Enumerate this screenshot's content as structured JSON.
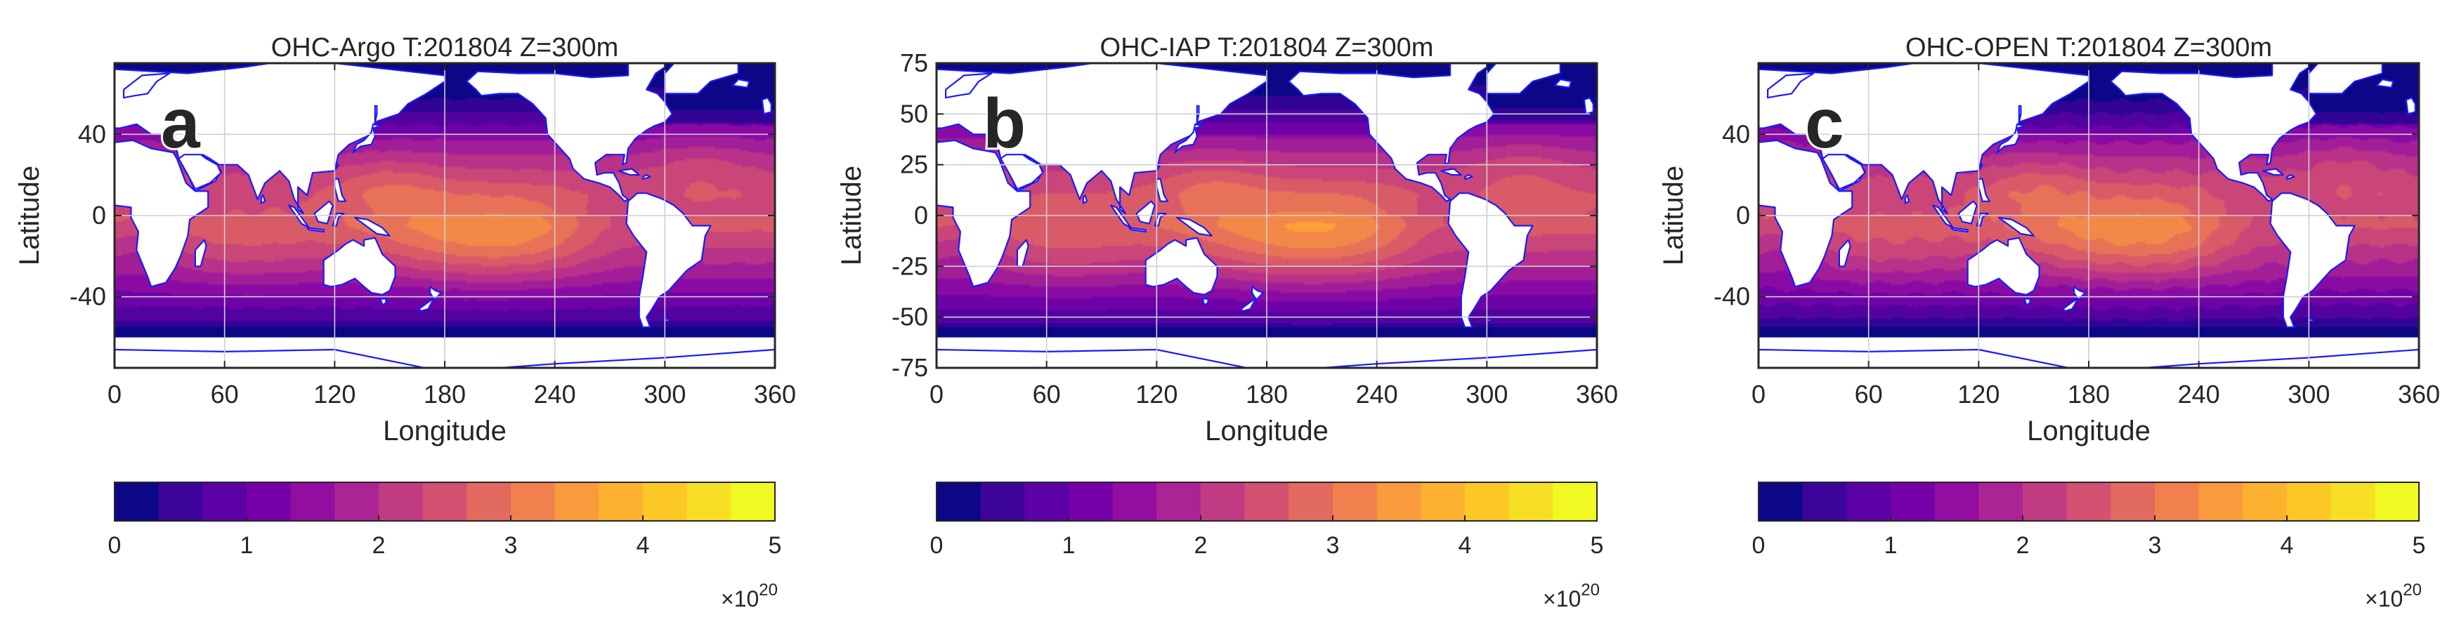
{
  "colors": {
    "land": "#ffffff",
    "coast": "#1a1aff",
    "grid": "#cfcfcf",
    "axis": "#262626",
    "colormap": [
      "#0c0786",
      "#40039c",
      "#6a00a7",
      "#8f0da3",
      "#b02a8f",
      "#ca4678",
      "#e16462",
      "#f2844b",
      "#fca635",
      "#fcce25",
      "#f0f921"
    ],
    "steps": [
      "#0c0786",
      "#3d049b",
      "#5b01a5",
      "#7701a8",
      "#930da1",
      "#ab2494",
      "#c13b82",
      "#d35171",
      "#e36a5f",
      "#f0804e",
      "#f99a3d",
      "#fcb22f",
      "#fcc826",
      "#f7e024",
      "#f0f921"
    ]
  },
  "panels": [
    {
      "letter": "a",
      "title": "OHC-Argo T:201804  Z=300m",
      "xlabel": "Longitude",
      "ylabel": "Latitude",
      "xticks": [
        "0",
        "60",
        "120",
        "180",
        "240",
        "300",
        "360"
      ],
      "yticks": [
        {
          "value": 40,
          "label": "40"
        },
        {
          "value": 0,
          "label": "0"
        },
        {
          "value": -40,
          "label": "-40"
        }
      ],
      "colorbar": {
        "ticks": [
          "0",
          "1",
          "2",
          "3",
          "4",
          "5"
        ],
        "exponent_base": "×10",
        "exponent": "20"
      }
    },
    {
      "letter": "b",
      "title": "OHC-IAP T:201804  Z=300m",
      "xlabel": "Longitude",
      "ylabel": "Latitude",
      "xticks": [
        "0",
        "60",
        "120",
        "180",
        "240",
        "300",
        "360"
      ],
      "yticks": [
        {
          "value": 75,
          "label": "75"
        },
        {
          "value": 50,
          "label": "50"
        },
        {
          "value": 25,
          "label": "25"
        },
        {
          "value": 0,
          "label": "0"
        },
        {
          "value": -25,
          "label": "-25"
        },
        {
          "value": -50,
          "label": "-50"
        },
        {
          "value": -75,
          "label": "-75"
        }
      ],
      "colorbar": {
        "ticks": [
          "0",
          "1",
          "2",
          "3",
          "4",
          "5"
        ],
        "exponent_base": "×10",
        "exponent": "20"
      }
    },
    {
      "letter": "c",
      "title": "OHC-OPEN T:201804  Z=300m",
      "xlabel": "Longitude",
      "ylabel": "Latitude",
      "xticks": [
        "0",
        "60",
        "120",
        "180",
        "240",
        "300",
        "360"
      ],
      "yticks": [
        {
          "value": 40,
          "label": "40"
        },
        {
          "value": 0,
          "label": "0"
        },
        {
          "value": -40,
          "label": "-40"
        }
      ],
      "colorbar": {
        "ticks": [
          "0",
          "1",
          "2",
          "3",
          "4",
          "5"
        ],
        "exponent_base": "×10",
        "exponent": "20"
      }
    }
  ],
  "chart_data": [
    {
      "type": "heatmap",
      "title": "OHC-Argo T:201804  Z=300m",
      "xlabel": "Longitude",
      "ylabel": "Latitude",
      "xlim": [
        0,
        360
      ],
      "ylim": [
        -75,
        75
      ],
      "data_lat_range": [
        -60,
        75
      ],
      "colorbar_range": [
        0,
        5
      ],
      "colorbar_units": "x10^20",
      "colorbar_levels": 15,
      "approx_field": [
        {
          "region": "tropical/subtropical Pacific (160-250E, 30S-10N)",
          "value": 3.2
        },
        {
          "region": "Indian Ocean (50-100E, 30S-0)",
          "value": 2.7
        },
        {
          "region": "subtropical Atlantic (300-345E, 10-35N)",
          "value": 2.6
        },
        {
          "region": "North Pacific (40-55N)",
          "value": 1.0
        },
        {
          "region": "Southern Ocean (50-60S)",
          "value": 0.3
        }
      ]
    },
    {
      "type": "heatmap",
      "title": "OHC-IAP T:201804  Z=300m",
      "xlabel": "Longitude",
      "ylabel": "Latitude",
      "xlim": [
        0,
        360
      ],
      "ylim": [
        -75,
        75
      ],
      "data_lat_range": [
        -60,
        75
      ],
      "colorbar_range": [
        0,
        5
      ],
      "colorbar_units": "x10^20",
      "colorbar_levels": 15,
      "approx_field": [
        {
          "region": "tropical/subtropical Pacific (160-250E, 30S-10N)",
          "value": 3.3
        },
        {
          "region": "Indian Ocean (50-100E, 30S-0)",
          "value": 2.8
        },
        {
          "region": "subtropical Atlantic (300-345E, 10-35N)",
          "value": 2.7
        },
        {
          "region": "North Pacific (40-55N)",
          "value": 1.0
        },
        {
          "region": "Southern Ocean (50-60S)",
          "value": 0.3
        }
      ]
    },
    {
      "type": "heatmap",
      "title": "OHC-OPEN T:201804  Z=300m",
      "xlabel": "Longitude",
      "ylabel": "Latitude",
      "xlim": [
        0,
        360
      ],
      "ylim": [
        -75,
        75
      ],
      "data_lat_range": [
        -60,
        75
      ],
      "colorbar_range": [
        0,
        5
      ],
      "colorbar_units": "x10^20",
      "colorbar_levels": 15,
      "approx_field": [
        {
          "region": "tropical/subtropical Pacific (160-250E, 30S-10N)",
          "value": 3.1
        },
        {
          "region": "Indian Ocean (50-100E, 30S-0)",
          "value": 2.7
        },
        {
          "region": "subtropical Atlantic (300-345E, 10-35N)",
          "value": 2.5
        },
        {
          "region": "North Pacific (40-55N)",
          "value": 1.0
        },
        {
          "region": "Southern Ocean (50-60S)",
          "value": 0.3
        }
      ]
    }
  ]
}
